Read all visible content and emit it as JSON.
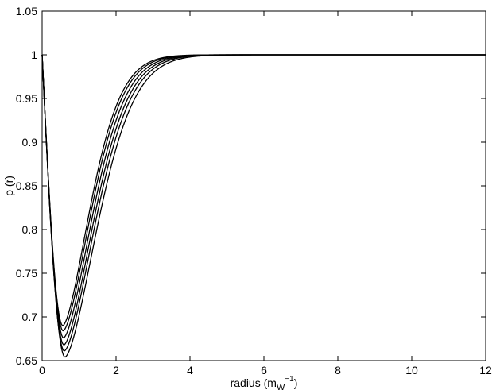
{
  "chart_data": {
    "type": "line",
    "xlabel": "radius (m",
    "xlabel_sub": "W",
    "xlabel_sup": "−1",
    "xlabel_close": ")",
    "ylabel": "ρ (r)",
    "xlim": [
      0,
      12
    ],
    "ylim": [
      0.65,
      1.05
    ],
    "x_ticks": [
      0,
      2,
      4,
      6,
      8,
      10,
      12
    ],
    "x_tick_labels": [
      "0",
      "2",
      "4",
      "6",
      "8",
      "10",
      "12"
    ],
    "y_ticks": [
      0.65,
      0.7,
      0.75,
      0.8,
      0.85,
      0.9,
      0.95,
      1,
      1.05
    ],
    "y_tick_labels": [
      "0.65",
      "0.7",
      "0.75",
      "0.8",
      "0.85",
      "0.9",
      "0.95",
      "1",
      "1.05"
    ],
    "grid": false,
    "line_color": "#000000",
    "series": [
      {
        "min_x": 0.62,
        "min_y": 0.654,
        "decay": 1.25
      },
      {
        "min_x": 0.6,
        "min_y": 0.661,
        "decay": 1.2
      },
      {
        "min_x": 0.59,
        "min_y": 0.668,
        "decay": 1.16
      },
      {
        "min_x": 0.58,
        "min_y": 0.676,
        "decay": 1.12
      },
      {
        "min_x": 0.57,
        "min_y": 0.684,
        "decay": 1.08
      },
      {
        "min_x": 0.56,
        "min_y": 0.69,
        "decay": 1.05
      }
    ]
  }
}
